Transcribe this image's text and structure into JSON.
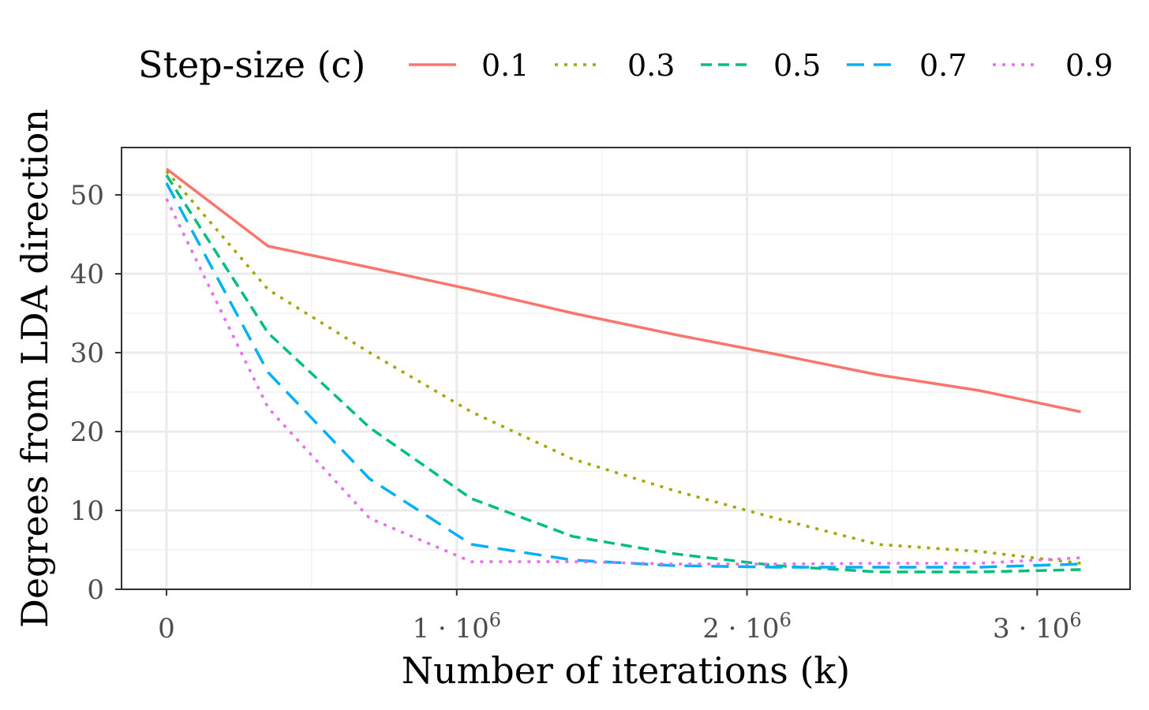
{
  "chart_data": {
    "type": "line",
    "title": "",
    "xlabel": "Number of iterations (k)",
    "ylabel": "Degrees from LDA direction",
    "xlim": [
      -155000,
      3320000
    ],
    "ylim": [
      0,
      56
    ],
    "grid": true,
    "legend": {
      "title": "Step-size (c)",
      "placement": "top"
    },
    "x_ticks": [
      {
        "value": 0,
        "base": "0",
        "exp": ""
      },
      {
        "value": 1000000,
        "base": "1 · 10",
        "exp": "6"
      },
      {
        "value": 2000000,
        "base": "2 · 10",
        "exp": "6"
      },
      {
        "value": 3000000,
        "base": "3 · 10",
        "exp": "6"
      }
    ],
    "y_ticks": [
      {
        "value": 0,
        "label": "0"
      },
      {
        "value": 10,
        "label": "10"
      },
      {
        "value": 20,
        "label": "20"
      },
      {
        "value": 30,
        "label": "30"
      },
      {
        "value": 40,
        "label": "40"
      },
      {
        "value": 50,
        "label": "50"
      }
    ],
    "x": [
      0,
      350000,
      700000,
      1050000,
      1400000,
      1750000,
      2100000,
      2450000,
      2800000,
      3150000
    ],
    "series": [
      {
        "name": "0.1",
        "color": "#F8766D",
        "dash": "solid",
        "values": [
          53.3,
          43.5,
          40.8,
          38.0,
          35.0,
          32.3,
          29.8,
          27.2,
          25.2,
          22.5
        ]
      },
      {
        "name": "0.3",
        "color": "#A3A500",
        "dash": "dotted",
        "values": [
          53.0,
          38.0,
          30.0,
          22.5,
          16.5,
          12.5,
          9.0,
          5.7,
          4.8,
          3.3
        ]
      },
      {
        "name": "0.5",
        "color": "#00BF7D",
        "dash": "dashed",
        "values": [
          52.5,
          32.5,
          20.5,
          11.5,
          6.7,
          4.5,
          3.0,
          2.2,
          2.2,
          2.5
        ]
      },
      {
        "name": "0.7",
        "color": "#00B0F6",
        "dash": "longdash",
        "values": [
          51.5,
          27.5,
          14.0,
          5.7,
          3.7,
          3.0,
          2.8,
          2.8,
          2.8,
          3.2
        ]
      },
      {
        "name": "0.9",
        "color": "#E76BF3",
        "dash": "dotted",
        "values": [
          49.5,
          23.0,
          9.0,
          3.5,
          3.5,
          3.2,
          3.2,
          3.3,
          3.3,
          4.0
        ]
      }
    ]
  }
}
